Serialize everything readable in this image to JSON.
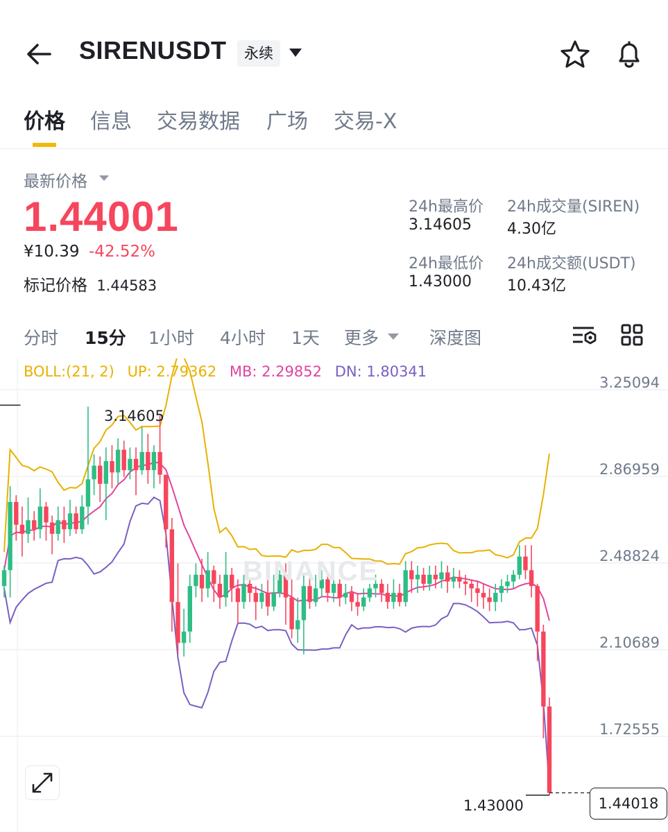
{
  "header": {
    "symbol": "SIRENUSDT",
    "contract_type": "永续",
    "icons": [
      "back-arrow-icon",
      "chevron-down-icon",
      "star-icon",
      "bell-icon"
    ]
  },
  "tabs": [
    {
      "label": "价格",
      "active": true
    },
    {
      "label": "信息",
      "active": false
    },
    {
      "label": "交易数据",
      "active": false
    },
    {
      "label": "广场",
      "active": false
    },
    {
      "label": "交易-X",
      "active": false
    }
  ],
  "price": {
    "last_label": "最新价格",
    "last_price": "1.44001",
    "cny_value": "¥10.39",
    "change_pct": "-42.52%",
    "mark_label": "标记价格",
    "mark_price": "1.44583"
  },
  "stats": {
    "high_label": "24h最高价",
    "high_value": "3.14605",
    "vol_base_label": "24h成交量(SIREN)",
    "vol_base_value": "4.30亿",
    "low_label": "24h最低价",
    "low_value": "1.43000",
    "vol_quote_label": "24h成交额(USDT)",
    "vol_quote_value": "10.43亿"
  },
  "intervals": {
    "items": [
      {
        "label": "分时",
        "active": false
      },
      {
        "label": "15分",
        "active": true
      },
      {
        "label": "1小时",
        "active": false
      },
      {
        "label": "4小时",
        "active": false
      },
      {
        "label": "1天",
        "active": false
      }
    ],
    "more_label": "更多",
    "depth_label": "深度图"
  },
  "colors": {
    "up": "#2ebd85",
    "down": "#f6465d",
    "accent": "#f0b90b",
    "boll_up": "#e8b100",
    "boll_mb": "#e0449f",
    "boll_dn": "#7a5fc2"
  },
  "chart_data": {
    "type": "candlestick",
    "interval": "15分",
    "boll": {
      "label": "BOLL:(21, 2)",
      "up": "UP: 2.79362",
      "mb": "MB: 2.29852",
      "dn": "DN: 1.80341"
    },
    "yticks": [
      "3.25094",
      "2.86959",
      "2.48824",
      "2.10689",
      "1.72555"
    ],
    "high_marker": "3.14605",
    "low_marker": "1.43000",
    "current_price": "1.44018",
    "watermark": "BINANCE",
    "candles": [
      [
        2.35,
        2.42,
        2.44,
        2.3
      ],
      [
        2.42,
        2.72,
        2.79,
        2.3
      ],
      [
        2.72,
        2.62,
        2.75,
        2.55
      ],
      [
        2.62,
        2.58,
        2.7,
        2.48
      ],
      [
        2.58,
        2.64,
        2.74,
        2.54
      ],
      [
        2.64,
        2.6,
        2.68,
        2.55
      ],
      [
        2.6,
        2.7,
        2.78,
        2.56
      ],
      [
        2.7,
        2.63,
        2.72,
        2.55
      ],
      [
        2.63,
        2.58,
        2.66,
        2.49
      ],
      [
        2.58,
        2.64,
        2.7,
        2.55
      ],
      [
        2.64,
        2.6,
        2.7,
        2.54
      ],
      [
        2.6,
        2.67,
        2.73,
        2.57
      ],
      [
        2.67,
        2.6,
        2.7,
        2.58
      ],
      [
        2.6,
        2.7,
        2.75,
        2.58
      ],
      [
        2.7,
        2.82,
        3.14,
        2.62
      ],
      [
        2.82,
        2.88,
        2.93,
        2.75
      ],
      [
        2.88,
        2.8,
        2.92,
        2.72
      ],
      [
        2.8,
        2.9,
        2.96,
        2.64
      ],
      [
        2.9,
        2.85,
        2.97,
        2.78
      ],
      [
        2.85,
        2.95,
        3.0,
        2.8
      ],
      [
        2.95,
        2.86,
        2.99,
        2.83
      ],
      [
        2.86,
        2.91,
        2.96,
        2.82
      ],
      [
        2.91,
        2.86,
        2.96,
        2.75
      ],
      [
        2.86,
        2.94,
        3.05,
        2.84
      ],
      [
        2.94,
        2.86,
        3.02,
        2.8
      ],
      [
        2.86,
        2.94,
        2.97,
        2.78
      ],
      [
        2.94,
        2.84,
        3.1,
        2.8
      ],
      [
        2.84,
        2.6,
        2.84,
        2.52
      ],
      [
        2.6,
        2.28,
        2.65,
        2.15
      ],
      [
        2.28,
        2.1,
        2.45,
        2.05
      ],
      [
        2.1,
        2.15,
        2.25,
        2.04
      ],
      [
        2.15,
        2.35,
        2.4,
        2.1
      ],
      [
        2.35,
        2.4,
        2.45,
        2.3
      ],
      [
        2.4,
        2.34,
        2.47,
        2.28
      ],
      [
        2.34,
        2.42,
        2.5,
        2.3
      ],
      [
        2.42,
        2.36,
        2.44,
        2.28
      ],
      [
        2.36,
        2.3,
        2.4,
        2.25
      ],
      [
        2.3,
        2.4,
        2.5,
        2.26
      ],
      [
        2.4,
        2.34,
        2.43,
        2.28
      ],
      [
        2.34,
        2.28,
        2.38,
        2.18
      ],
      [
        2.28,
        2.36,
        2.4,
        2.25
      ],
      [
        2.36,
        2.32,
        2.38,
        2.28
      ],
      [
        2.32,
        2.28,
        2.35,
        2.2
      ],
      [
        2.28,
        2.32,
        2.36,
        2.25
      ],
      [
        2.32,
        2.26,
        2.38,
        2.22
      ],
      [
        2.26,
        2.32,
        2.4,
        2.24
      ],
      [
        2.32,
        2.4,
        2.42,
        2.3
      ],
      [
        2.4,
        2.3,
        2.45,
        2.18
      ],
      [
        2.3,
        2.16,
        2.38,
        2.12
      ],
      [
        2.16,
        2.2,
        2.3,
        2.1
      ],
      [
        2.2,
        2.35,
        2.4,
        2.05
      ],
      [
        2.35,
        2.28,
        2.4,
        2.25
      ],
      [
        2.28,
        2.34,
        2.4,
        2.26
      ],
      [
        2.34,
        2.38,
        2.42,
        2.3
      ],
      [
        2.38,
        2.32,
        2.4,
        2.28
      ],
      [
        2.32,
        2.36,
        2.4,
        2.28
      ],
      [
        2.36,
        2.3,
        2.38,
        2.26
      ],
      [
        2.3,
        2.32,
        2.36,
        2.27
      ],
      [
        2.32,
        2.28,
        2.35,
        2.24
      ],
      [
        2.28,
        2.26,
        2.32,
        2.22
      ],
      [
        2.26,
        2.3,
        2.34,
        2.24
      ],
      [
        2.3,
        2.34,
        2.36,
        2.28
      ],
      [
        2.34,
        2.36,
        2.4,
        2.3
      ],
      [
        2.36,
        2.32,
        2.38,
        2.28
      ],
      [
        2.32,
        2.28,
        2.36,
        2.25
      ],
      [
        2.28,
        2.32,
        2.38,
        2.25
      ],
      [
        2.32,
        2.28,
        2.36,
        2.26
      ],
      [
        2.28,
        2.42,
        2.46,
        2.26
      ],
      [
        2.42,
        2.38,
        2.46,
        2.32
      ],
      [
        2.38,
        2.4,
        2.44,
        2.32
      ],
      [
        2.4,
        2.36,
        2.43,
        2.33
      ],
      [
        2.36,
        2.4,
        2.44,
        2.33
      ],
      [
        2.4,
        2.38,
        2.44,
        2.34
      ],
      [
        2.38,
        2.41,
        2.46,
        2.34
      ],
      [
        2.41,
        2.37,
        2.44,
        2.32
      ],
      [
        2.37,
        2.39,
        2.43,
        2.34
      ],
      [
        2.39,
        2.37,
        2.42,
        2.34
      ],
      [
        2.37,
        2.36,
        2.4,
        2.31
      ],
      [
        2.36,
        2.34,
        2.38,
        2.28
      ],
      [
        2.34,
        2.32,
        2.37,
        2.26
      ],
      [
        2.32,
        2.3,
        2.36,
        2.25
      ],
      [
        2.3,
        2.28,
        2.34,
        2.24
      ],
      [
        2.28,
        2.32,
        2.36,
        2.24
      ],
      [
        2.32,
        2.35,
        2.38,
        2.28
      ],
      [
        2.35,
        2.37,
        2.4,
        2.32
      ],
      [
        2.37,
        2.4,
        2.42,
        2.34
      ],
      [
        2.4,
        2.48,
        2.53,
        2.38
      ],
      [
        2.48,
        2.42,
        2.53,
        2.38
      ],
      [
        2.42,
        2.35,
        2.53,
        2.3
      ],
      [
        2.35,
        2.15,
        2.36,
        2.02
      ],
      [
        2.15,
        1.82,
        2.18,
        1.68
      ],
      [
        1.82,
        1.44,
        1.86,
        1.43
      ]
    ]
  }
}
